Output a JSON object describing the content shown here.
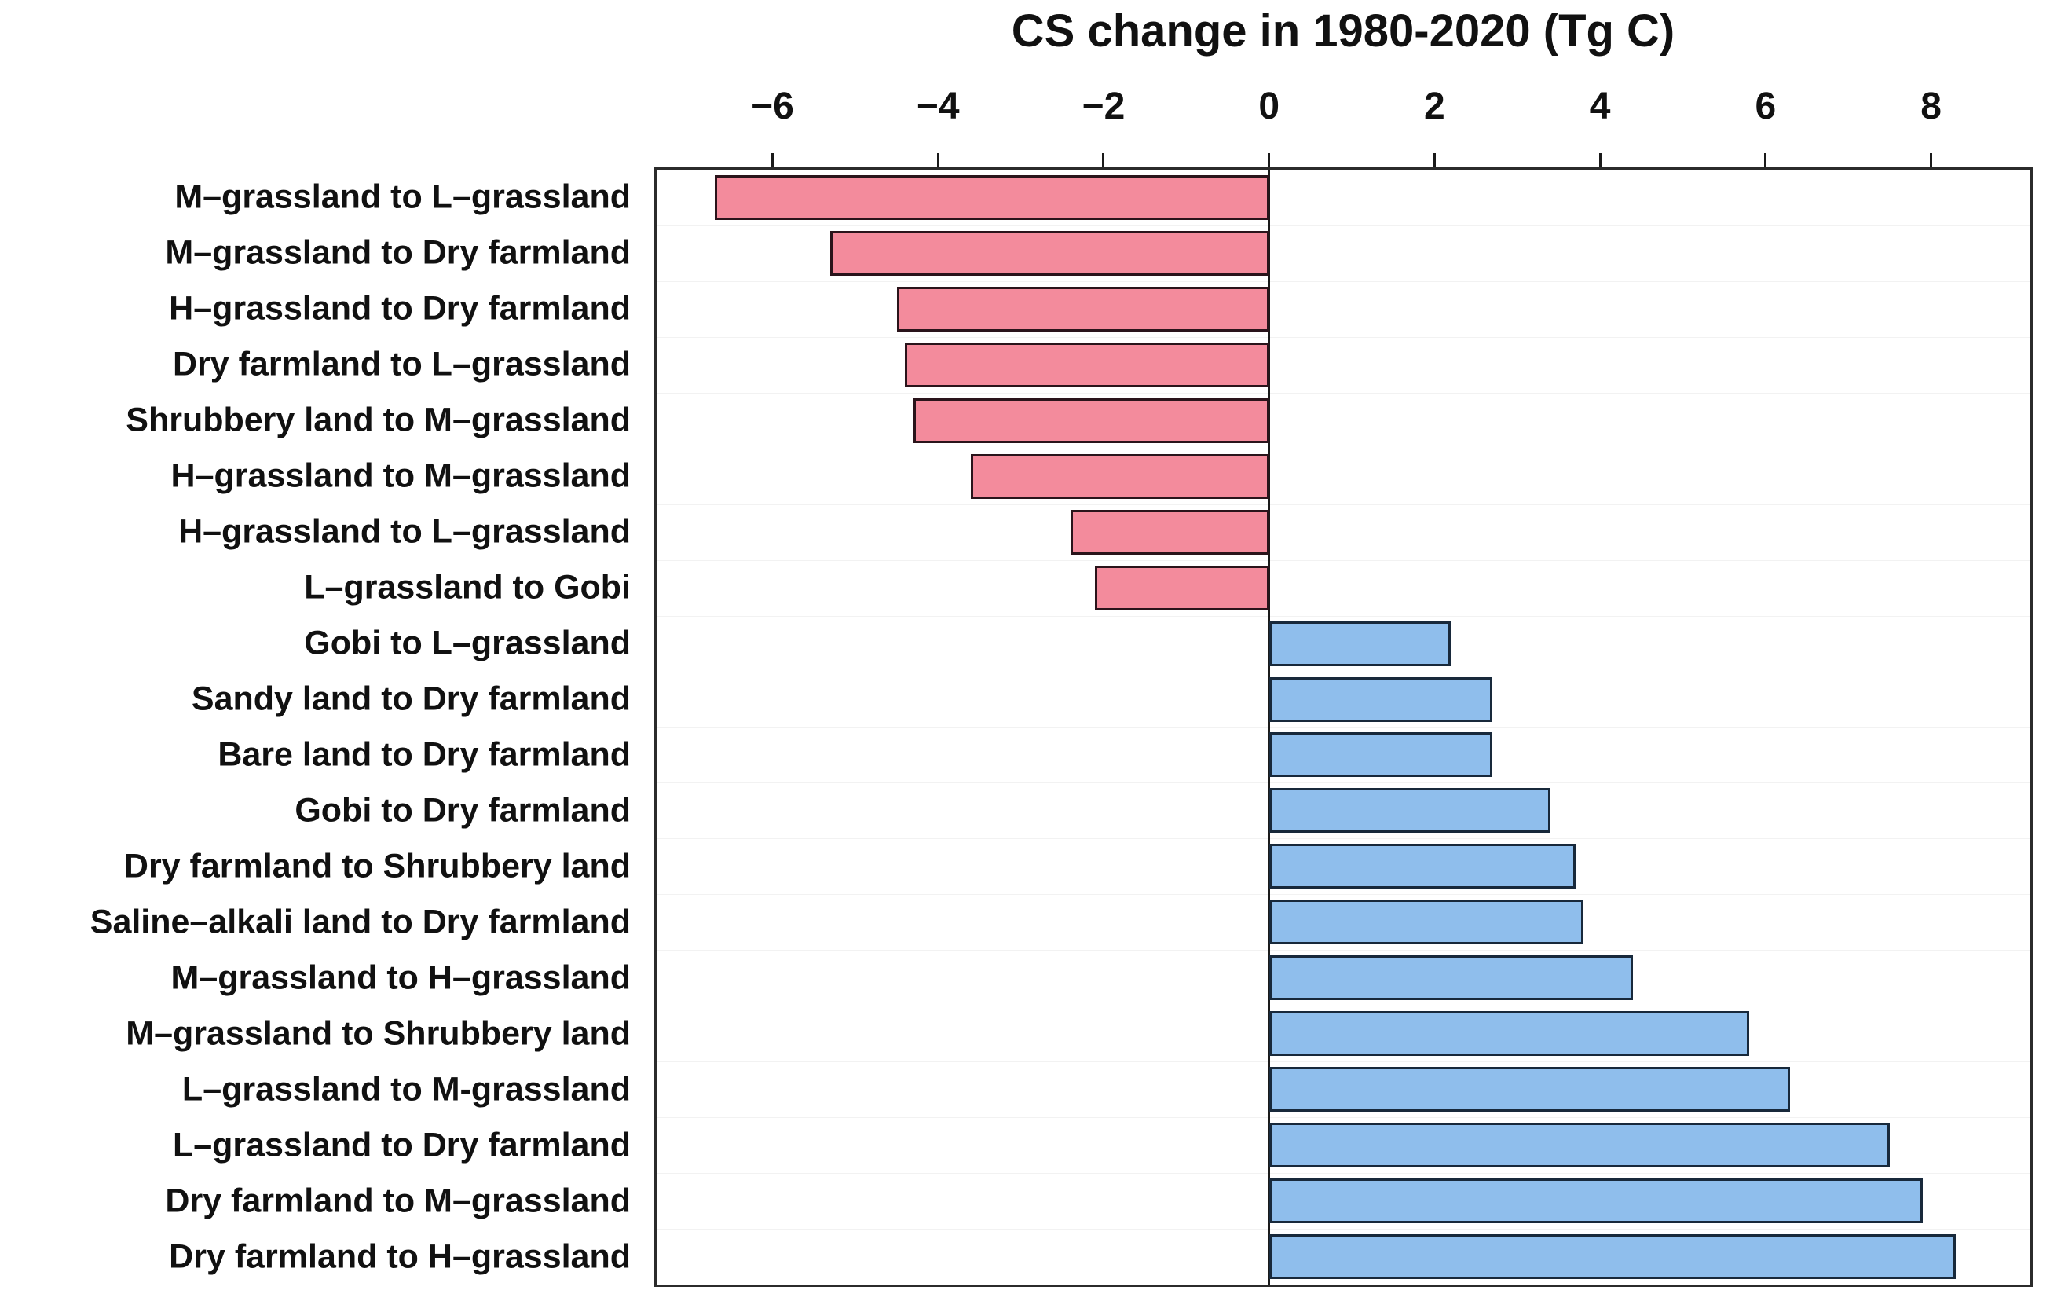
{
  "chart_data": {
    "type": "bar",
    "orientation": "horizontal",
    "title": "CS change in 1980-2020 (Tg C)",
    "xlabel": "",
    "ylabel": "",
    "x_ticks": [
      -6,
      -4,
      -2,
      0,
      2,
      4,
      6,
      8
    ],
    "xlim": [
      -7.4,
      9.2
    ],
    "grid": "faint horizontal row separators",
    "legend": "none",
    "categories": [
      "M–grassland to L–grassland",
      "M–grassland to Dry farmland",
      "H–grassland to Dry farmland",
      "Dry farmland to L–grassland",
      "Shrubbery land to M–grassland",
      "H–grassland to M–grassland",
      "H–grassland to L–grassland",
      "L–grassland to Gobi",
      "Gobi to L–grassland",
      "Sandy land to Dry farmland",
      "Bare land to Dry farmland",
      "Gobi to Dry farmland",
      "Dry farmland to Shrubbery land",
      "Saline–alkali land to Dry farmland",
      "M–grassland to H–grassland",
      "M–grassland to Shrubbery land",
      "L–grassland to M-grassland",
      "L–grassland to Dry farmland",
      "Dry farmland to M–grassland",
      "Dry farmland to H–grassland"
    ],
    "values": [
      -6.7,
      -5.3,
      -4.5,
      -4.4,
      -4.3,
      -3.6,
      -2.4,
      -2.1,
      2.2,
      2.7,
      2.7,
      3.4,
      3.7,
      3.8,
      4.4,
      5.8,
      6.3,
      7.5,
      7.9,
      8.3
    ],
    "colors": {
      "negative_bar_fill": "#F38B9C",
      "negative_bar_border": "#2A141B",
      "positive_bar_fill": "#8FBEEC",
      "positive_bar_border": "#18293B",
      "axis_line": "#1A1A1A",
      "text": "#111111",
      "background": "#FFFFFF"
    }
  }
}
